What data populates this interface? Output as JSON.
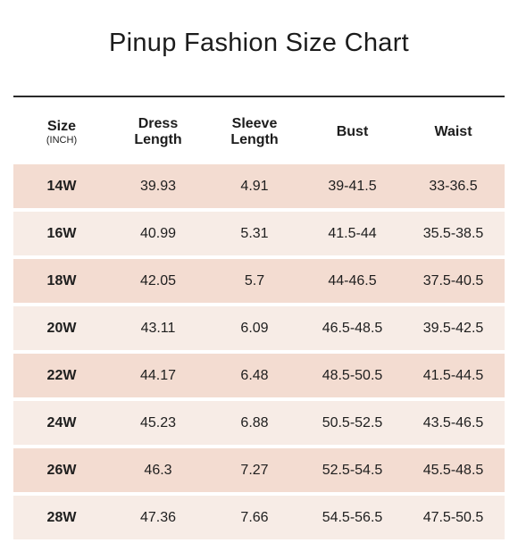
{
  "title": "Pinup Fashion Size Chart",
  "table": {
    "headers": [
      {
        "line1": "Size",
        "line2": "(INCH)"
      },
      {
        "line1": "Dress",
        "line2": "Length"
      },
      {
        "line1": "Sleeve",
        "line2": "Length"
      },
      {
        "line1": "Bust",
        "line2": ""
      },
      {
        "line1": "Waist",
        "line2": ""
      }
    ],
    "rows": [
      {
        "size": "14W",
        "dress_length": "39.93",
        "sleeve_length": "4.91",
        "bust": "39-41.5",
        "waist": "33-36.5"
      },
      {
        "size": "16W",
        "dress_length": "40.99",
        "sleeve_length": "5.31",
        "bust": "41.5-44",
        "waist": "35.5-38.5"
      },
      {
        "size": "18W",
        "dress_length": "42.05",
        "sleeve_length": "5.7",
        "bust": "44-46.5",
        "waist": "37.5-40.5"
      },
      {
        "size": "20W",
        "dress_length": "43.11",
        "sleeve_length": "6.09",
        "bust": "46.5-48.5",
        "waist": "39.5-42.5"
      },
      {
        "size": "22W",
        "dress_length": "44.17",
        "sleeve_length": "6.48",
        "bust": "48.5-50.5",
        "waist": "41.5-44.5"
      },
      {
        "size": "24W",
        "dress_length": "45.23",
        "sleeve_length": "6.88",
        "bust": "50.5-52.5",
        "waist": "43.5-46.5"
      },
      {
        "size": "26W",
        "dress_length": "46.3",
        "sleeve_length": "7.27",
        "bust": "52.5-54.5",
        "waist": "45.5-48.5"
      },
      {
        "size": "28W",
        "dress_length": "47.36",
        "sleeve_length": "7.66",
        "bust": "54.5-56.5",
        "waist": "47.5-50.5"
      }
    ]
  },
  "colors": {
    "row_odd": "#f3dcd1",
    "row_even": "#f7ece6",
    "rule": "#2a2a2a",
    "text": "#1e1e1e"
  }
}
